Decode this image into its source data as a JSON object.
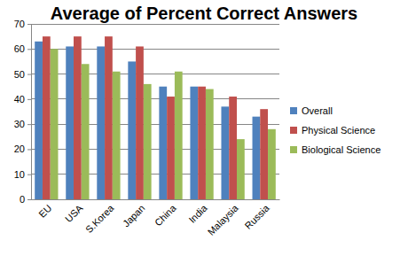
{
  "chart_data": {
    "type": "bar",
    "title": "Average of Percent Correct Answers",
    "categories": [
      "EU",
      "USA",
      "S.Korea",
      "Japan",
      "China",
      "India",
      "Malaysia",
      "Russia"
    ],
    "series": [
      {
        "name": "Overall",
        "color": "#4f81bd",
        "values": [
          63,
          61,
          61,
          55,
          45,
          45,
          37,
          33
        ]
      },
      {
        "name": "Physical Science",
        "color": "#c0504d",
        "values": [
          65,
          65,
          65,
          61,
          41,
          45,
          41,
          36
        ]
      },
      {
        "name": "Biological Science",
        "color": "#9bbb59",
        "values": [
          60,
          54,
          51,
          46,
          51,
          44,
          24,
          28
        ]
      }
    ],
    "ylim": [
      0,
      70
    ],
    "yticks": [
      0,
      10,
      20,
      30,
      40,
      50,
      60,
      70
    ],
    "grid": true,
    "legend": "right"
  }
}
